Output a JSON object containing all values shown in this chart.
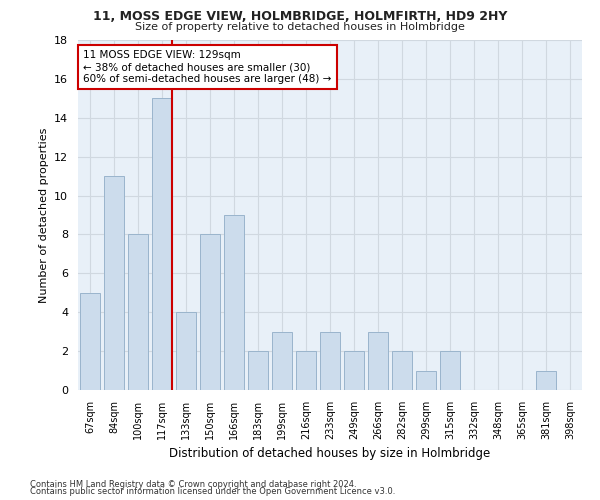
{
  "title1": "11, MOSS EDGE VIEW, HOLMBRIDGE, HOLMFIRTH, HD9 2HY",
  "title2": "Size of property relative to detached houses in Holmbridge",
  "xlabel": "Distribution of detached houses by size in Holmbridge",
  "ylabel": "Number of detached properties",
  "categories": [
    "67sqm",
    "84sqm",
    "100sqm",
    "117sqm",
    "133sqm",
    "150sqm",
    "166sqm",
    "183sqm",
    "199sqm",
    "216sqm",
    "233sqm",
    "249sqm",
    "266sqm",
    "282sqm",
    "299sqm",
    "315sqm",
    "332sqm",
    "348sqm",
    "365sqm",
    "381sqm",
    "398sqm"
  ],
  "values": [
    5,
    11,
    8,
    15,
    4,
    8,
    9,
    2,
    3,
    2,
    3,
    2,
    3,
    2,
    1,
    2,
    0,
    0,
    0,
    1,
    0
  ],
  "bar_color": "#ccdcec",
  "bar_edge_color": "#9ab4cc",
  "grid_color": "#d0d8e0",
  "bg_color": "#e8f0f8",
  "fig_color": "#ffffff",
  "annotation_text": "11 MOSS EDGE VIEW: 129sqm\n← 38% of detached houses are smaller (30)\n60% of semi-detached houses are larger (48) →",
  "vline_color": "#cc0000",
  "box_color": "#cc0000",
  "ylim": [
    0,
    18
  ],
  "yticks": [
    0,
    2,
    4,
    6,
    8,
    10,
    12,
    14,
    16,
    18
  ],
  "footnote1": "Contains HM Land Registry data © Crown copyright and database right 2024.",
  "footnote2": "Contains public sector information licensed under the Open Government Licence v3.0."
}
